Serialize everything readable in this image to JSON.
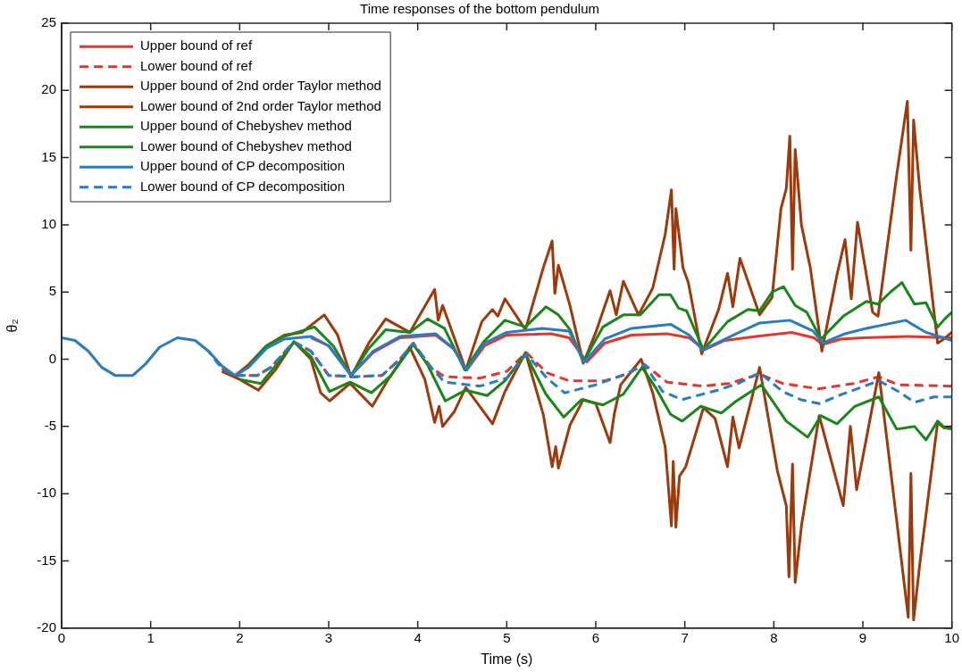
{
  "chart_data": {
    "type": "line",
    "title": "Time responses of the bottom pendulum",
    "xlabel": "Time (s)",
    "ylabel": "θ₂",
    "xlim": [
      0,
      10
    ],
    "xticks": [
      0,
      1,
      2,
      3,
      4,
      5,
      6,
      7,
      8,
      9,
      10
    ],
    "ylim": [
      -20,
      25
    ],
    "yticks": [
      -20,
      -15,
      -10,
      -5,
      0,
      5,
      10,
      15,
      20,
      25
    ],
    "grid": false,
    "legend": "top left",
    "marker": "none",
    "series": [
      {
        "name": "Upper bound of ref",
        "color": "#e2372b",
        "line_style": "solid",
        "x": [
          2.8,
          3.0,
          3.25,
          3.5,
          3.8,
          4.2,
          4.4,
          4.55,
          4.75,
          5.0,
          5.5,
          5.7,
          5.9,
          6.1,
          6.4,
          6.8,
          7.05,
          7.22,
          7.45,
          7.8,
          8.2,
          8.45,
          8.55,
          8.75,
          9.0,
          9.5,
          10
        ],
        "values": [
          1.6,
          1.0,
          -1.2,
          0.5,
          1.6,
          1.8,
          0.8,
          -0.8,
          1.0,
          1.8,
          1.9,
          1.6,
          -0.2,
          1.2,
          1.8,
          1.9,
          1.6,
          0.7,
          1.4,
          1.7,
          2.0,
          1.6,
          1.1,
          1.5,
          1.6,
          1.7,
          1.6
        ]
      },
      {
        "name": "Lower bound of ref",
        "color": "#e2372b",
        "line_style": "dashed",
        "x": [
          1.8,
          1.95,
          2.2,
          2.35,
          2.61,
          2.8,
          3.0,
          3.3,
          3.6,
          3.8,
          3.95,
          4.15,
          4.3,
          4.7,
          5.0,
          5.22,
          5.45,
          5.7,
          6.1,
          6.35,
          6.55,
          6.8,
          7.2,
          7.5,
          7.84,
          8.1,
          8.5,
          8.9,
          9.18,
          9.4,
          10
        ],
        "values": [
          -0.7,
          -1.2,
          -1.2,
          -0.6,
          1.3,
          0.6,
          -1.2,
          -1.3,
          -1.2,
          0.0,
          1.2,
          -0.6,
          -1.3,
          -1.4,
          -0.9,
          0.5,
          -1.0,
          -1.6,
          -1.6,
          -1.1,
          -0.4,
          -1.7,
          -2.0,
          -1.8,
          -1.1,
          -1.8,
          -2.2,
          -1.8,
          -1.3,
          -1.9,
          -2.0
        ]
      },
      {
        "name": "Upper bound of 2nd order Taylor method",
        "color": "#9c3a0c",
        "line_style": "solid",
        "x": [
          1.95,
          2.1,
          2.3,
          2.5,
          2.7,
          2.95,
          3.1,
          3.25,
          3.45,
          3.64,
          3.91,
          4.19,
          4.23,
          4.28,
          4.54,
          4.72,
          4.84,
          4.9,
          4.98,
          5.21,
          5.41,
          5.51,
          5.54,
          5.58,
          5.71,
          5.86,
          6.0,
          6.16,
          6.23,
          6.31,
          6.48,
          6.64,
          6.78,
          6.85,
          6.88,
          6.9,
          6.98,
          7.04,
          7.19,
          7.38,
          7.48,
          7.54,
          7.62,
          7.84,
          7.98,
          8.08,
          8.14,
          8.18,
          8.21,
          8.24,
          8.31,
          8.41,
          8.54,
          8.71,
          8.8,
          8.87,
          8.94,
          9.11,
          9.17,
          9.38,
          9.5,
          9.54,
          9.57,
          9.64,
          9.84,
          9.91,
          10
        ],
        "values": [
          -1.2,
          -0.4,
          1.0,
          1.8,
          2.0,
          3.3,
          1.8,
          -1.3,
          1.2,
          3.0,
          2.0,
          5.2,
          2.9,
          4.0,
          -0.8,
          2.8,
          3.7,
          3.2,
          4.5,
          2.2,
          6.8,
          8.8,
          4.9,
          7.0,
          4.0,
          -0.3,
          2.0,
          5.1,
          3.3,
          5.8,
          3.3,
          5.3,
          9.3,
          12.6,
          6.7,
          11.2,
          6.8,
          5.7,
          0.4,
          3.7,
          6.4,
          3.9,
          7.5,
          3.3,
          4.6,
          11.2,
          12.7,
          16.6,
          6.7,
          15.6,
          10.0,
          6.8,
          0.6,
          6.3,
          8.9,
          4.5,
          10.2,
          3.5,
          3.2,
          13.7,
          19.2,
          8.1,
          17.8,
          12.6,
          1.2,
          1.5,
          2.0
        ]
      },
      {
        "name": "Lower bound of 2nd order Taylor method",
        "color": "#9c3a0c",
        "line_style": "solid",
        "x": [
          1.8,
          2.0,
          2.21,
          2.4,
          2.61,
          2.8,
          2.91,
          3.01,
          3.24,
          3.49,
          3.64,
          3.91,
          4.08,
          4.19,
          4.24,
          4.28,
          4.41,
          4.54,
          4.84,
          4.98,
          5.21,
          5.41,
          5.51,
          5.55,
          5.58,
          5.71,
          5.86,
          6.0,
          6.16,
          6.21,
          6.28,
          6.51,
          6.64,
          6.78,
          6.85,
          6.87,
          6.9,
          6.94,
          7.01,
          7.21,
          7.34,
          7.48,
          7.54,
          7.61,
          7.84,
          8.04,
          8.14,
          8.17,
          8.21,
          8.24,
          8.31,
          8.51,
          8.78,
          8.86,
          8.93,
          9.18,
          9.38,
          9.51,
          9.54,
          9.57,
          9.64,
          9.84,
          9.91,
          10
        ],
        "values": [
          -0.9,
          -1.5,
          -2.3,
          -0.8,
          1.3,
          0.0,
          -2.5,
          -3.1,
          -1.8,
          -3.5,
          -1.8,
          0.9,
          -1.5,
          -4.7,
          -3.5,
          -5.0,
          -3.9,
          -2.1,
          -4.8,
          -2.4,
          0.5,
          -4.1,
          -8.0,
          -6.5,
          -8.1,
          -4.9,
          -3.0,
          -3.3,
          -6.2,
          -4.0,
          -1.9,
          0.0,
          -2.5,
          -6.5,
          -12.4,
          -7.6,
          -12.5,
          -8.7,
          -8.0,
          -3.6,
          -4.4,
          -8.0,
          -4.3,
          -6.6,
          -0.6,
          -8.3,
          -10.9,
          -16.2,
          -7.8,
          -16.6,
          -12.4,
          -4.2,
          -10.9,
          -5.0,
          -9.7,
          -1.0,
          -12.0,
          -19.2,
          -8.5,
          -19.4,
          -15.2,
          -4.7,
          -5.1,
          -5.0
        ]
      },
      {
        "name": "Upper bound of Chebyshev method",
        "color": "#1a861a",
        "line_style": "solid",
        "x": [
          2.1,
          2.3,
          2.5,
          2.84,
          3.05,
          3.25,
          3.45,
          3.64,
          3.91,
          4.11,
          4.3,
          4.53,
          4.74,
          4.98,
          5.21,
          5.44,
          5.58,
          5.71,
          5.86,
          6.08,
          6.31,
          6.5,
          6.71,
          6.84,
          6.93,
          7.02,
          7.21,
          7.48,
          7.71,
          7.84,
          7.98,
          8.11,
          8.24,
          8.37,
          8.53,
          8.78,
          9.04,
          9.17,
          9.31,
          9.44,
          9.58,
          9.71,
          9.84,
          9.92,
          10
        ],
        "values": [
          -0.5,
          1.0,
          1.7,
          2.4,
          1.0,
          -1.2,
          0.8,
          2.2,
          2.0,
          3.0,
          2.3,
          -0.8,
          1.3,
          2.9,
          2.4,
          3.9,
          3.3,
          2.2,
          -0.2,
          2.4,
          3.3,
          3.3,
          4.8,
          4.8,
          3.8,
          3.6,
          0.7,
          2.8,
          3.7,
          3.6,
          5.0,
          5.4,
          4.0,
          3.5,
          1.5,
          3.2,
          4.3,
          4.1,
          5.0,
          5.7,
          4.1,
          4.2,
          2.4,
          3.0,
          3.5
        ]
      },
      {
        "name": "Lower bound of Chebyshev method",
        "color": "#1a861a",
        "line_style": "solid",
        "x": [
          2.0,
          2.24,
          2.4,
          2.61,
          2.8,
          3.01,
          3.24,
          3.48,
          3.7,
          3.95,
          4.11,
          4.31,
          4.54,
          4.78,
          4.98,
          5.21,
          5.44,
          5.64,
          5.84,
          6.08,
          6.31,
          6.52,
          6.68,
          6.84,
          6.97,
          7.18,
          7.41,
          7.58,
          7.86,
          8.14,
          8.38,
          8.53,
          8.71,
          8.91,
          9.18,
          9.38,
          9.58,
          9.71,
          9.84,
          9.92,
          10
        ],
        "values": [
          -1.5,
          -1.8,
          -0.5,
          1.3,
          0.2,
          -2.4,
          -1.7,
          -2.5,
          -1.2,
          1.1,
          -0.4,
          -3.1,
          -2.3,
          -2.7,
          -1.6,
          0.4,
          -2.6,
          -4.3,
          -3.0,
          -3.4,
          -2.6,
          -0.6,
          -2.2,
          -4.1,
          -4.6,
          -3.5,
          -4.0,
          -3.1,
          -1.9,
          -4.6,
          -5.8,
          -4.2,
          -4.8,
          -3.5,
          -2.8,
          -5.2,
          -5.0,
          -6.0,
          -4.6,
          -5.1,
          -5.2
        ]
      },
      {
        "name": "Upper bound of CP decomposition",
        "color": "#2b7bbf",
        "line_style": "solid",
        "x": [
          0,
          0.15,
          0.3,
          0.45,
          0.6,
          0.8,
          0.95,
          1.1,
          1.3,
          1.5,
          1.65,
          1.8,
          1.95,
          2.1,
          2.3,
          2.5,
          2.8,
          3.0,
          3.25,
          3.5,
          3.8,
          4.2,
          4.4,
          4.55,
          4.75,
          5.0,
          5.4,
          5.7,
          5.87,
          6.1,
          6.4,
          6.84,
          7.05,
          7.2,
          7.58,
          7.84,
          8.18,
          8.44,
          8.55,
          8.8,
          9.04,
          9.48,
          9.71,
          10
        ],
        "values": [
          1.6,
          1.4,
          0.6,
          -0.6,
          -1.2,
          -1.2,
          -0.3,
          0.9,
          1.6,
          1.4,
          0.6,
          -0.5,
          -1.2,
          -0.6,
          0.8,
          1.5,
          1.7,
          1.0,
          -1.2,
          0.6,
          1.7,
          1.9,
          0.8,
          -0.8,
          1.2,
          2.0,
          2.3,
          2.1,
          -0.2,
          1.5,
          2.3,
          2.6,
          1.8,
          0.7,
          1.9,
          2.7,
          2.9,
          2.1,
          1.2,
          1.9,
          2.3,
          2.9,
          2.0,
          1.4
        ]
      },
      {
        "name": "Lower bound of CP decomposition",
        "color": "#2b7bbf",
        "line_style": "dashed",
        "x": [
          1.65,
          1.8,
          1.95,
          2.2,
          2.35,
          2.61,
          2.8,
          3.0,
          3.3,
          3.6,
          3.8,
          3.95,
          4.15,
          4.3,
          4.7,
          5.0,
          5.22,
          5.45,
          5.65,
          6.0,
          6.3,
          6.55,
          6.75,
          6.97,
          7.37,
          7.6,
          7.84,
          8.1,
          8.3,
          8.51,
          8.77,
          9.18,
          9.4,
          9.58,
          9.8,
          10
        ],
        "values": [
          0.6,
          -0.7,
          -1.2,
          -1.2,
          -0.6,
          1.3,
          0.6,
          -1.2,
          -1.3,
          -1.2,
          0.0,
          1.2,
          -0.6,
          -1.7,
          -2.0,
          -1.4,
          0.4,
          -1.4,
          -2.5,
          -1.9,
          -1.2,
          -0.4,
          -2.4,
          -3.0,
          -2.3,
          -1.8,
          -1.0,
          -2.4,
          -3.0,
          -3.3,
          -2.6,
          -1.6,
          -2.4,
          -3.2,
          -2.8,
          -2.8
        ]
      }
    ]
  }
}
